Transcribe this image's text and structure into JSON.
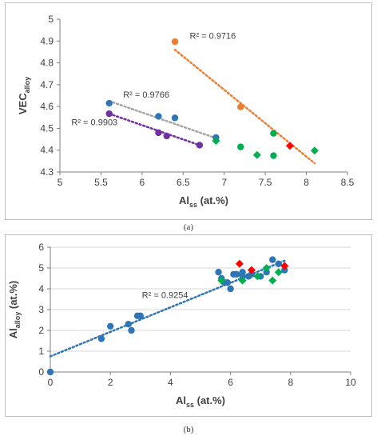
{
  "chart_data": [
    {
      "type": "scatter",
      "caption": "(a)",
      "xlabel": "Al",
      "xlabel_sub": "ss",
      "xlabel_suffix": " (at.%)",
      "ylabel": "VEC",
      "ylabel_sub": "alloy",
      "xlim": [
        5,
        8.5
      ],
      "ylim": [
        4.3,
        5
      ],
      "xticks": [
        "5",
        "5.5",
        "6",
        "6.5",
        "7",
        "7.5",
        "8",
        "8.5"
      ],
      "yticks": [
        "4.3",
        "4.4",
        "4.5",
        "4.6",
        "4.7",
        "4.8",
        "4.9",
        "5"
      ],
      "xtick_values": [
        5,
        5.5,
        6,
        6.5,
        7,
        7.5,
        8,
        8.5
      ],
      "ytick_values": [
        4.3,
        4.4,
        4.5,
        4.6,
        4.7,
        4.8,
        4.9,
        5
      ],
      "grid": false,
      "series": [
        {
          "color": "#2e75b6",
          "marker": "circle",
          "points": [
            [
              5.6,
              4.615
            ],
            [
              6.2,
              4.555
            ],
            [
              6.4,
              4.548
            ],
            [
              6.9,
              4.458
            ]
          ]
        },
        {
          "color": "#7030a0",
          "marker": "circle",
          "points": [
            [
              5.6,
              4.567
            ],
            [
              6.2,
              4.48
            ],
            [
              6.3,
              4.465
            ],
            [
              6.7,
              4.423
            ]
          ]
        },
        {
          "color": "#ed7d31",
          "marker": "circle",
          "points": [
            [
              6.4,
              4.897
            ],
            [
              7.2,
              4.598
            ]
          ]
        },
        {
          "color": "#00b050",
          "marker": "circle",
          "points": [
            [
              7.2,
              4.415
            ],
            [
              7.6,
              4.477
            ],
            [
              7.6,
              4.375
            ]
          ]
        },
        {
          "color": "#00b050",
          "marker": "diamond",
          "points": [
            [
              6.9,
              4.443
            ],
            [
              7.4,
              4.378
            ],
            [
              8.1,
              4.398
            ]
          ]
        },
        {
          "color": "#ff0000",
          "marker": "diamond",
          "points": [
            [
              7.8,
              4.42
            ]
          ]
        }
      ],
      "trendlines": [
        {
          "color": "#a5a5a5",
          "x": [
            5.6,
            6.9
          ],
          "y": [
            4.625,
            4.455
          ],
          "label": "R² = 0.9766",
          "label_at": [
            5.77,
            4.64
          ]
        },
        {
          "color": "#7030a0",
          "x": [
            5.6,
            6.7
          ],
          "y": [
            4.567,
            4.423
          ],
          "label": "R² = 0.9903",
          "label_at": [
            5.14,
            4.515
          ]
        },
        {
          "color": "#ed7d31",
          "x": [
            6.4,
            8.1
          ],
          "y": [
            4.86,
            4.34
          ],
          "label": "R² = 0.9716",
          "label_at": [
            6.58,
            4.91
          ]
        }
      ]
    },
    {
      "type": "scatter",
      "caption": "(b)",
      "xlabel": "Al",
      "xlabel_sub": "ss",
      "xlabel_suffix": " (at.%)",
      "ylabel": "Al",
      "ylabel_sub": "alloy",
      "ylabel_suffix": " (at.%)",
      "xlim": [
        0,
        10
      ],
      "ylim": [
        0,
        6
      ],
      "xticks": [
        "0",
        "2",
        "4",
        "6",
        "8",
        "10"
      ],
      "yticks": [
        "0",
        "1",
        "2",
        "3",
        "4",
        "5",
        "6"
      ],
      "xtick_values": [
        0,
        2,
        4,
        6,
        8,
        10
      ],
      "ytick_values": [
        0,
        1,
        2,
        3,
        4,
        5,
        6
      ],
      "grid": true,
      "series": [
        {
          "color": "#2e75b6",
          "marker": "circle",
          "points": [
            [
              0,
              0
            ],
            [
              1.7,
              1.6
            ],
            [
              2.0,
              2.2
            ],
            [
              2.6,
              2.3
            ],
            [
              2.7,
              2.0
            ],
            [
              2.9,
              2.7
            ],
            [
              3.0,
              2.7
            ],
            [
              5.6,
              4.8
            ],
            [
              5.7,
              4.5
            ],
            [
              5.8,
              4.3
            ],
            [
              5.9,
              4.3
            ],
            [
              6.0,
              4.0
            ],
            [
              6.1,
              4.7
            ],
            [
              6.2,
              4.7
            ],
            [
              6.4,
              4.6
            ],
            [
              6.4,
              4.8
            ],
            [
              6.6,
              4.6
            ],
            [
              6.7,
              4.7
            ],
            [
              7.0,
              4.6
            ],
            [
              7.2,
              4.8
            ],
            [
              7.4,
              5.4
            ],
            [
              7.6,
              5.2
            ],
            [
              7.8,
              4.9
            ]
          ]
        },
        {
          "color": "#00b050",
          "marker": "diamond",
          "points": [
            [
              5.7,
              4.4
            ],
            [
              6.4,
              4.4
            ],
            [
              6.9,
              4.6
            ],
            [
              7.2,
              5.0
            ],
            [
              7.4,
              4.4
            ],
            [
              7.6,
              4.8
            ]
          ]
        },
        {
          "color": "#ff0000",
          "marker": "diamond",
          "points": [
            [
              6.3,
              5.2
            ],
            [
              6.7,
              4.9
            ],
            [
              7.8,
              5.1
            ]
          ]
        }
      ],
      "trendlines": [
        {
          "color": "#2e75b6",
          "x": [
            0,
            7.8
          ],
          "y": [
            0.75,
            5.35
          ],
          "label": "R² = 0.9254",
          "label_at": [
            3.05,
            3.55
          ]
        }
      ]
    }
  ]
}
